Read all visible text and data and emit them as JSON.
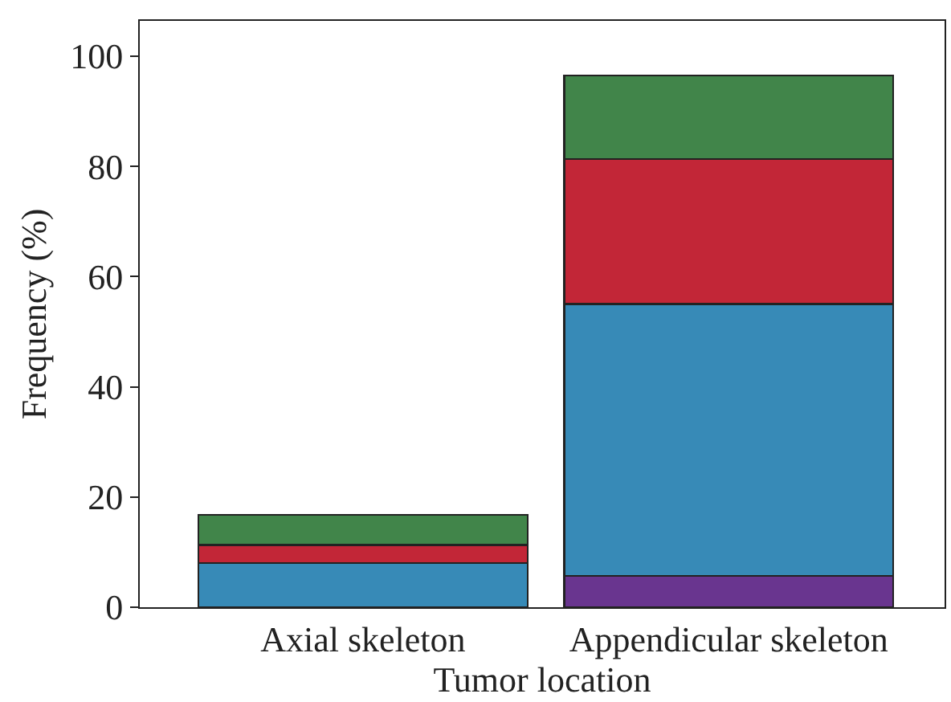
{
  "chart_data": {
    "type": "bar",
    "stacked": true,
    "xlabel": "Tumor location",
    "ylabel": "Frequency (%)",
    "categories": [
      "Axial skeleton",
      "Appendicular skeleton"
    ],
    "series": [
      {
        "color": "#69358f",
        "values": [
          0,
          5.7
        ]
      },
      {
        "color": "#378ab7",
        "values": [
          8.0,
          49.3
        ]
      },
      {
        "color": "#c22637",
        "values": [
          3.3,
          26.3
        ]
      },
      {
        "color": "#41854a",
        "values": [
          5.5,
          15.2
        ]
      }
    ],
    "ylim": [
      0,
      106.4
    ],
    "yticks": [
      0,
      20,
      40,
      60,
      80,
      100
    ],
    "grid": false
  }
}
